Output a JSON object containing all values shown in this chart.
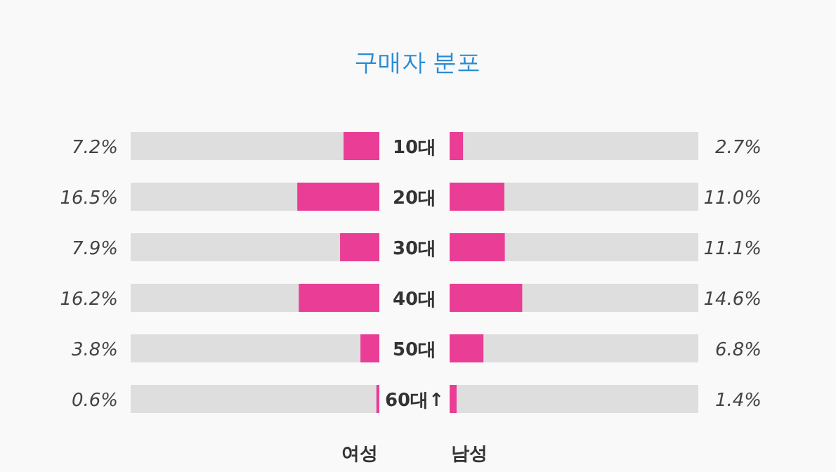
{
  "chart_data": [
    {
      "type": "bar",
      "orientation": "horizontal",
      "title": "구매자 분포",
      "categories": [
        "10대",
        "20대",
        "30대",
        "40대",
        "50대",
        "60대↑"
      ],
      "xlim": [
        50,
        0
      ],
      "tick_labels": "y",
      "data_labels": true,
      "series": [
        {
          "name": "여성",
          "color": "#e93d96",
          "values": [
            7.2,
            16.5,
            7.9,
            16.2,
            3.8,
            0.6
          ],
          "value_labels": [
            "7.2%",
            "16.5%",
            "7.9%",
            "16.2%",
            "3.8%",
            "0.6%"
          ]
        }
      ]
    },
    {
      "type": "bar",
      "orientation": "horizontal",
      "categories": [
        null,
        null,
        null,
        null,
        null,
        null
      ],
      "xlim": [
        0,
        50
      ],
      "tick_labels": false,
      "data_labels": true,
      "series": [
        {
          "name": "남성",
          "color": "#e93d96",
          "values": [
            2.7,
            11.0,
            11.1,
            14.6,
            6.8,
            1.4
          ],
          "value_labels": [
            "2.7%",
            "11.0%",
            "11.1%",
            "14.6%",
            "6.8%",
            "1.4%"
          ]
        }
      ]
    }
  ]
}
